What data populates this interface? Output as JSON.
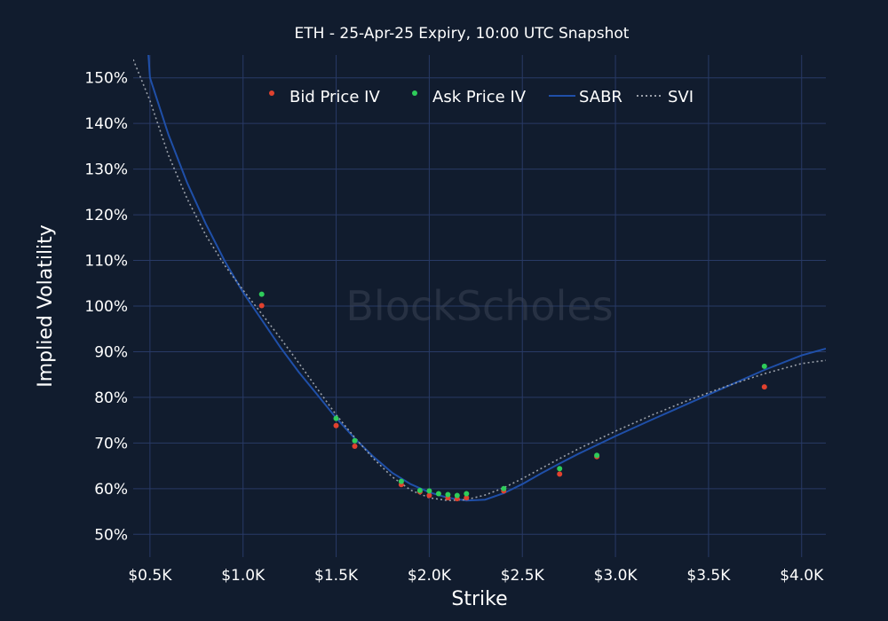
{
  "chart_data": {
    "type": "scatter",
    "title": "ETH - 25-Apr-25 Expiry, 10:00 UTC Snapshot",
    "xlabel": "Strike",
    "ylabel": "Implied Volatility",
    "watermark": "BlockScholes",
    "xlim": [
      410,
      4130
    ],
    "ylim": [
      45,
      155
    ],
    "x_ticks": [
      500,
      1000,
      1500,
      2000,
      2500,
      3000,
      3500,
      4000
    ],
    "x_tick_labels": [
      "$0.5K",
      "$1.0K",
      "$1.5K",
      "$2.0K",
      "$2.5K",
      "$3.0K",
      "$3.5K",
      "$4.0K"
    ],
    "y_ticks": [
      50,
      60,
      70,
      80,
      90,
      100,
      110,
      120,
      130,
      140,
      150
    ],
    "y_tick_labels": [
      "50%",
      "60%",
      "70%",
      "80%",
      "90%",
      "100%",
      "110%",
      "120%",
      "130%",
      "140%",
      "150%"
    ],
    "grid": true,
    "legend_position": "top-center",
    "series": [
      {
        "name": "Bid Price IV",
        "kind": "markers",
        "color": "#e0412e",
        "points": [
          [
            1100,
            100.1
          ],
          [
            1500,
            73.8
          ],
          [
            1600,
            69.3
          ],
          [
            1850,
            60.9
          ],
          [
            1950,
            59.3
          ],
          [
            2000,
            58.5
          ],
          [
            2100,
            58.0
          ],
          [
            2150,
            57.8
          ],
          [
            2200,
            58.0
          ],
          [
            2400,
            59.5
          ],
          [
            2700,
            63.2
          ],
          [
            2900,
            67.0
          ],
          [
            3800,
            82.3
          ]
        ]
      },
      {
        "name": "Ask Price IV",
        "kind": "markers",
        "color": "#2ecc5a",
        "points": [
          [
            1100,
            102.6
          ],
          [
            1500,
            75.4
          ],
          [
            1600,
            70.5
          ],
          [
            1850,
            61.6
          ],
          [
            1950,
            59.6
          ],
          [
            2000,
            59.5
          ],
          [
            2050,
            58.9
          ],
          [
            2100,
            58.7
          ],
          [
            2150,
            58.5
          ],
          [
            2200,
            58.9
          ],
          [
            2400,
            60.0
          ],
          [
            2700,
            64.4
          ],
          [
            2900,
            67.3
          ],
          [
            3800,
            86.8
          ]
        ]
      },
      {
        "name": "SABR",
        "kind": "line",
        "color": "#1f4fa8",
        "points": [
          [
            490,
            156
          ],
          [
            500,
            150
          ],
          [
            600,
            137.5
          ],
          [
            700,
            127
          ],
          [
            800,
            118
          ],
          [
            900,
            110
          ],
          [
            1000,
            103
          ],
          [
            1100,
            97
          ],
          [
            1200,
            91
          ],
          [
            1300,
            85.5
          ],
          [
            1400,
            80.5
          ],
          [
            1500,
            75.5
          ],
          [
            1600,
            71
          ],
          [
            1700,
            67
          ],
          [
            1800,
            63.5
          ],
          [
            1900,
            61
          ],
          [
            2000,
            59.2
          ],
          [
            2100,
            58
          ],
          [
            2200,
            57.4
          ],
          [
            2300,
            57.6
          ],
          [
            2400,
            59
          ],
          [
            2500,
            61
          ],
          [
            2600,
            63.3
          ],
          [
            2700,
            65.5
          ],
          [
            2800,
            67.6
          ],
          [
            3000,
            71.5
          ],
          [
            3200,
            75.2
          ],
          [
            3400,
            78.8
          ],
          [
            3600,
            82.4
          ],
          [
            3800,
            86
          ],
          [
            4000,
            89.2
          ],
          [
            4130,
            90.7
          ]
        ]
      },
      {
        "name": "SVI",
        "kind": "line",
        "dash": "dotted",
        "color": "#9aa0aa",
        "points": [
          [
            410,
            154
          ],
          [
            500,
            145
          ],
          [
            600,
            133
          ],
          [
            700,
            123.5
          ],
          [
            800,
            115.5
          ],
          [
            900,
            109
          ],
          [
            1000,
            103.5
          ],
          [
            1100,
            98.3
          ],
          [
            1200,
            93
          ],
          [
            1300,
            87.5
          ],
          [
            1400,
            81.8
          ],
          [
            1500,
            76.2
          ],
          [
            1600,
            71.2
          ],
          [
            1700,
            66.6
          ],
          [
            1800,
            62.6
          ],
          [
            1900,
            59.7
          ],
          [
            2000,
            58
          ],
          [
            2100,
            57.4
          ],
          [
            2200,
            57.6
          ],
          [
            2300,
            58.6
          ],
          [
            2400,
            60.2
          ],
          [
            2500,
            62.2
          ],
          [
            2600,
            64.4
          ],
          [
            2700,
            66.6
          ],
          [
            2800,
            68.7
          ],
          [
            3000,
            72.6
          ],
          [
            3200,
            76.2
          ],
          [
            3400,
            79.5
          ],
          [
            3600,
            82.5
          ],
          [
            3800,
            85.2
          ],
          [
            4000,
            87.4
          ],
          [
            4130,
            88.1
          ]
        ]
      }
    ]
  }
}
